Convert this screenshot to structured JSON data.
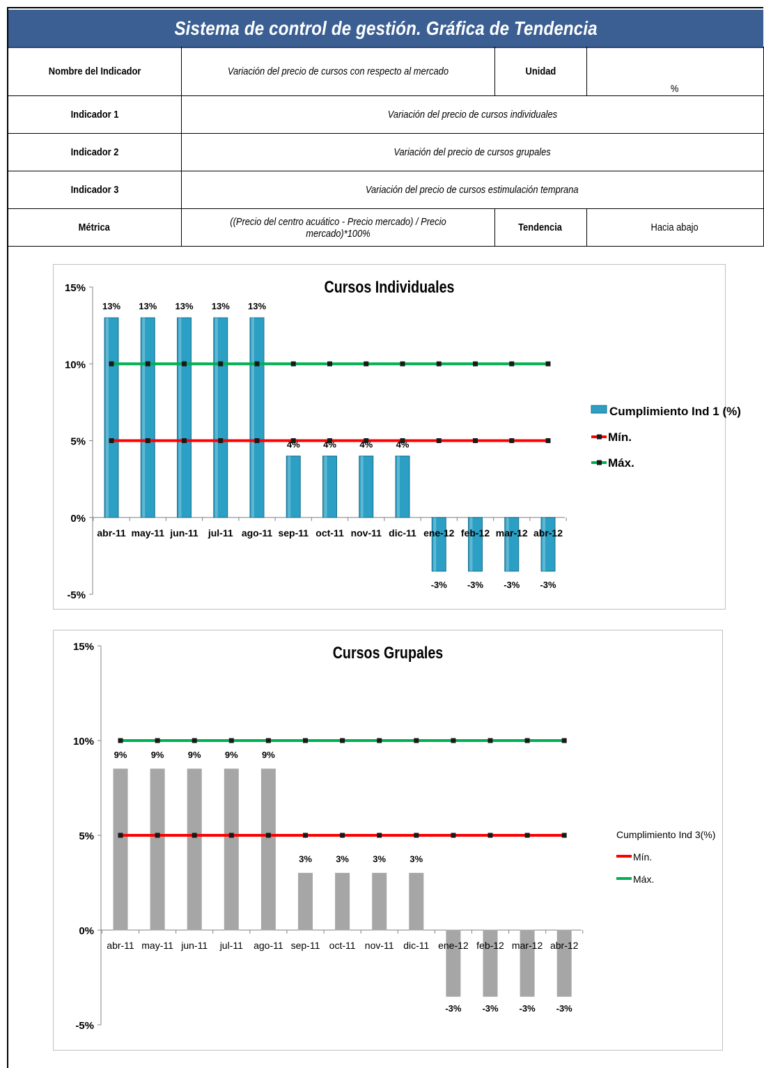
{
  "header": {
    "title": "Sistema de control de gestión. Gráfica de Tendencia"
  },
  "info": {
    "nombre_label": "Nombre del Indicador",
    "nombre_value": "Variación del precio  de cursos con respecto al mercado",
    "unidad_label": "Unidad",
    "unidad_value": "%",
    "ind1_label": "Indicador 1",
    "ind1_value": "Variación del precio de cursos individuales",
    "ind2_label": "Indicador 2",
    "ind2_value": "Variación del precio de cursos grupales",
    "ind3_label": "Indicador 3",
    "ind3_value": "Variación del precio de cursos estimulación temprana",
    "metrica_label": "Métrica",
    "metrica_value": "((Precio del centro acuático - Precio mercado) / Precio mercado)*100%",
    "tendencia_label": "Tendencia",
    "tendencia_value": "Hacia abajo"
  },
  "chart_data": [
    {
      "type": "bar",
      "title": "Cursos Individuales",
      "categories": [
        "abr-11",
        "may-11",
        "jun-11",
        "jul-11",
        "ago-11",
        "sep-11",
        "oct-11",
        "nov-11",
        "dic-11",
        "ene-12",
        "feb-12",
        "mar-12",
        "abr-12"
      ],
      "series": [
        {
          "name": "Cumplimiento Ind 1 (%)",
          "type": "bar",
          "values": [
            13,
            13,
            13,
            13,
            13,
            4,
            4,
            4,
            4,
            -3.5,
            -3.5,
            -3.5,
            -3.5
          ],
          "labels": [
            "13%",
            "13%",
            "13%",
            "13%",
            "13%",
            "4%",
            "4%",
            "4%",
            "4%",
            "-3%",
            "-3%",
            "-3%",
            "-3%"
          ],
          "color": "#31a3c9"
        },
        {
          "name": "Mín.",
          "type": "line",
          "values": [
            5,
            5,
            5,
            5,
            5,
            5,
            5,
            5,
            5,
            5,
            5,
            5,
            5
          ],
          "color": "#ff0000"
        },
        {
          "name": "Máx.",
          "type": "line",
          "values": [
            10,
            10,
            10,
            10,
            10,
            10,
            10,
            10,
            10,
            10,
            10,
            10,
            10
          ],
          "color": "#00b050"
        }
      ],
      "ylim": [
        -5,
        15
      ],
      "yticks": [
        "15%",
        "10%",
        "5%",
        "0%",
        "-5%"
      ],
      "legend": "right"
    },
    {
      "type": "bar",
      "title": "Cursos Grupales",
      "categories": [
        "abr-11",
        "may-11",
        "jun-11",
        "jul-11",
        "ago-11",
        "sep-11",
        "oct-11",
        "nov-11",
        "dic-11",
        "ene-12",
        "feb-12",
        "mar-12",
        "abr-12"
      ],
      "series": [
        {
          "name": "Cumplimiento Ind 3(%)",
          "type": "bar",
          "values": [
            8.5,
            8.5,
            8.5,
            8.5,
            8.5,
            3,
            3,
            3,
            3,
            -3.5,
            -3.5,
            -3.5,
            -3.5
          ],
          "labels": [
            "9%",
            "9%",
            "9%",
            "9%",
            "9%",
            "3%",
            "3%",
            "3%",
            "3%",
            "-3%",
            "-3%",
            "-3%",
            "-3%"
          ],
          "color": "#a6a6a6"
        },
        {
          "name": "Mín.",
          "type": "line",
          "values": [
            5,
            5,
            5,
            5,
            5,
            5,
            5,
            5,
            5,
            5,
            5,
            5,
            5
          ],
          "color": "#ff0000"
        },
        {
          "name": "Máx.",
          "type": "line",
          "values": [
            10,
            10,
            10,
            10,
            10,
            10,
            10,
            10,
            10,
            10,
            10,
            10,
            10
          ],
          "color": "#00b050"
        }
      ],
      "ylim": [
        -5,
        15
      ],
      "yticks": [
        "15%",
        "10%",
        "5%",
        "0%",
        "-5%"
      ],
      "legend": "right"
    }
  ]
}
